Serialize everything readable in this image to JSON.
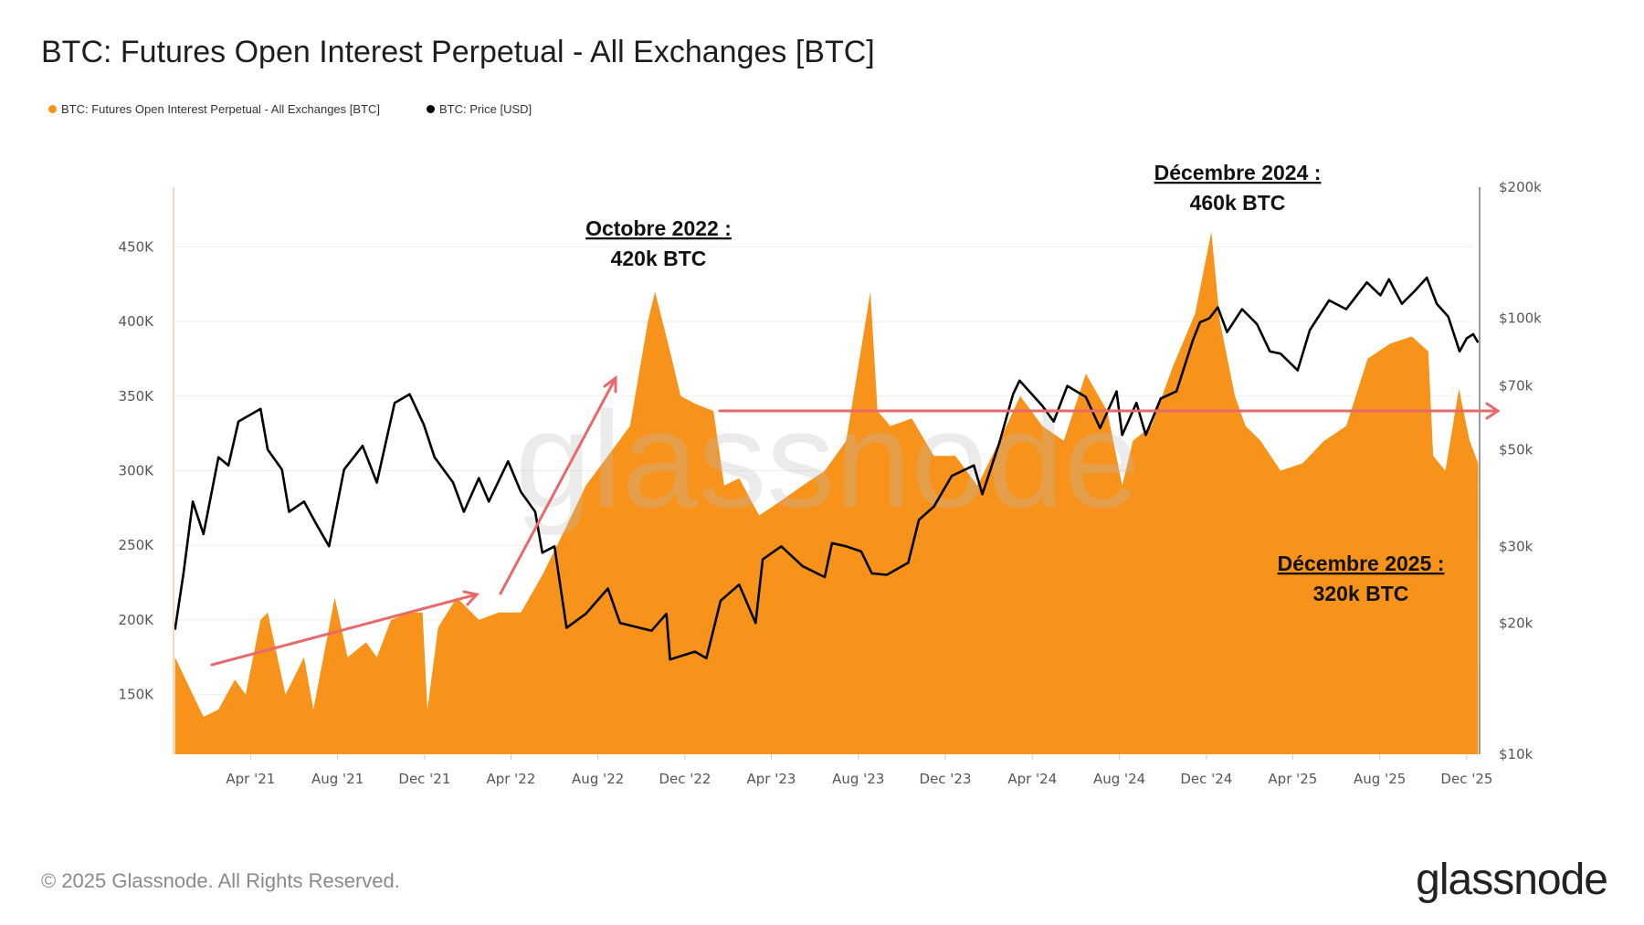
{
  "title": "BTC: Futures Open Interest Perpetual - All Exchanges [BTC]",
  "legend": [
    {
      "label": "BTC: Futures Open Interest Perpetual - All Exchanges [BTC]",
      "color": "#f7931a"
    },
    {
      "label": "BTC: Price [USD]",
      "color": "#000000"
    }
  ],
  "footer": {
    "copyright": "© 2025 Glassnode. All Rights Reserved.",
    "logo": "glassnode"
  },
  "watermark": "glassnode",
  "chart_data": {
    "type": "area+line",
    "title": "BTC: Futures Open Interest Perpetual - All Exchanges [BTC]",
    "xlim": [
      "2020-12-14",
      "2025-12-19"
    ],
    "x_ticks": [
      "Apr '21",
      "Aug '21",
      "Dec '21",
      "Apr '22",
      "Aug '22",
      "Dec '22",
      "Apr '23",
      "Aug '23",
      "Dec '23",
      "Apr '24",
      "Aug '24",
      "Dec '24",
      "Apr '25",
      "Aug '25",
      "Dec '25"
    ],
    "x_tick_dates": [
      "2021-04-01",
      "2021-08-01",
      "2021-12-01",
      "2022-04-01",
      "2022-08-01",
      "2022-12-01",
      "2023-04-01",
      "2023-08-01",
      "2023-12-01",
      "2024-04-01",
      "2024-08-01",
      "2024-12-01",
      "2025-04-01",
      "2025-08-01",
      "2025-12-01"
    ],
    "y_left": {
      "ticks": [
        "150K",
        "200K",
        "250K",
        "300K",
        "350K",
        "400K",
        "450K"
      ],
      "tick_values": [
        150000,
        200000,
        250000,
        300000,
        350000,
        400000,
        450000
      ],
      "ylim": [
        110000,
        490000
      ]
    },
    "y_right": {
      "scale": "log",
      "ticks": [
        "$10k",
        "$20k",
        "$30k",
        "$50k",
        "$70k",
        "$100k",
        "$200k"
      ],
      "tick_values": [
        10000,
        20000,
        30000,
        50000,
        70000,
        100000,
        200000
      ],
      "ylim": [
        10000,
        200000
      ]
    },
    "grid": true,
    "legend_placement": "top-left",
    "series": [
      {
        "name": "BTC: Futures Open Interest Perpetual - All Exchanges [BTC]",
        "axis": "left",
        "color": "#f7931a",
        "style": "area",
        "points": [
          [
            "2020-12-16",
            175000
          ],
          [
            "2021-01-10",
            150000
          ],
          [
            "2021-01-25",
            135000
          ],
          [
            "2021-02-15",
            140000
          ],
          [
            "2021-03-10",
            160000
          ],
          [
            "2021-03-25",
            150000
          ],
          [
            "2021-04-15",
            200000
          ],
          [
            "2021-04-25",
            205000
          ],
          [
            "2021-05-20",
            150000
          ],
          [
            "2021-06-15",
            175000
          ],
          [
            "2021-06-28",
            140000
          ],
          [
            "2021-07-20",
            195000
          ],
          [
            "2021-07-28",
            215000
          ],
          [
            "2021-08-15",
            175000
          ],
          [
            "2021-09-10",
            185000
          ],
          [
            "2021-09-25",
            175000
          ],
          [
            "2021-10-15",
            200000
          ],
          [
            "2021-11-10",
            205000
          ],
          [
            "2021-11-28",
            205000
          ],
          [
            "2021-12-05",
            140000
          ],
          [
            "2021-12-20",
            195000
          ],
          [
            "2022-01-15",
            215000
          ],
          [
            "2022-02-15",
            200000
          ],
          [
            "2022-03-15",
            205000
          ],
          [
            "2022-04-15",
            205000
          ],
          [
            "2022-05-15",
            230000
          ],
          [
            "2022-06-15",
            260000
          ],
          [
            "2022-07-15",
            290000
          ],
          [
            "2022-08-15",
            310000
          ],
          [
            "2022-09-15",
            330000
          ],
          [
            "2022-10-10",
            400000
          ],
          [
            "2022-10-20",
            420000
          ],
          [
            "2022-11-10",
            380000
          ],
          [
            "2022-11-25",
            350000
          ],
          [
            "2022-12-15",
            345000
          ],
          [
            "2023-01-10",
            340000
          ],
          [
            "2023-01-25",
            290000
          ],
          [
            "2023-02-15",
            295000
          ],
          [
            "2023-03-15",
            270000
          ],
          [
            "2023-04-15",
            280000
          ],
          [
            "2023-05-15",
            290000
          ],
          [
            "2023-06-15",
            300000
          ],
          [
            "2023-07-15",
            320000
          ],
          [
            "2023-08-18",
            420000
          ],
          [
            "2023-08-28",
            340000
          ],
          [
            "2023-09-15",
            330000
          ],
          [
            "2023-10-15",
            335000
          ],
          [
            "2023-11-15",
            310000
          ],
          [
            "2023-12-15",
            310000
          ],
          [
            "2024-01-15",
            290000
          ],
          [
            "2024-02-15",
            320000
          ],
          [
            "2024-03-15",
            350000
          ],
          [
            "2024-04-15",
            330000
          ],
          [
            "2024-05-15",
            320000
          ],
          [
            "2024-06-15",
            365000
          ],
          [
            "2024-07-15",
            340000
          ],
          [
            "2024-08-05",
            290000
          ],
          [
            "2024-08-20",
            320000
          ],
          [
            "2024-09-15",
            330000
          ],
          [
            "2024-10-15",
            370000
          ],
          [
            "2024-11-15",
            405000
          ],
          [
            "2024-12-08",
            460000
          ],
          [
            "2024-12-20",
            400000
          ],
          [
            "2025-01-10",
            350000
          ],
          [
            "2025-01-25",
            330000
          ],
          [
            "2025-02-15",
            320000
          ],
          [
            "2025-03-15",
            300000
          ],
          [
            "2025-04-15",
            305000
          ],
          [
            "2025-05-15",
            320000
          ],
          [
            "2025-06-15",
            330000
          ],
          [
            "2025-07-15",
            375000
          ],
          [
            "2025-08-15",
            385000
          ],
          [
            "2025-09-15",
            390000
          ],
          [
            "2025-10-08",
            380000
          ],
          [
            "2025-10-15",
            310000
          ],
          [
            "2025-11-01",
            300000
          ],
          [
            "2025-11-20",
            355000
          ],
          [
            "2025-12-05",
            320000
          ],
          [
            "2025-12-17",
            305000
          ]
        ]
      },
      {
        "name": "BTC: Price [USD]",
        "axis": "right",
        "color": "#000000",
        "style": "line",
        "points": [
          [
            "2020-12-16",
            19300
          ],
          [
            "2020-12-28",
            26000
          ],
          [
            "2021-01-10",
            38000
          ],
          [
            "2021-01-25",
            32000
          ],
          [
            "2021-02-15",
            48000
          ],
          [
            "2021-03-01",
            46000
          ],
          [
            "2021-03-15",
            58000
          ],
          [
            "2021-04-15",
            62000
          ],
          [
            "2021-04-25",
            50000
          ],
          [
            "2021-05-15",
            45000
          ],
          [
            "2021-05-25",
            36000
          ],
          [
            "2021-06-15",
            38000
          ],
          [
            "2021-07-01",
            34000
          ],
          [
            "2021-07-20",
            30000
          ],
          [
            "2021-08-10",
            45000
          ],
          [
            "2021-09-05",
            51000
          ],
          [
            "2021-09-25",
            42000
          ],
          [
            "2021-10-20",
            64000
          ],
          [
            "2021-11-10",
            67000
          ],
          [
            "2021-11-30",
            57000
          ],
          [
            "2021-12-15",
            48000
          ],
          [
            "2022-01-10",
            42000
          ],
          [
            "2022-01-25",
            36000
          ],
          [
            "2022-02-15",
            43000
          ],
          [
            "2022-03-01",
            38000
          ],
          [
            "2022-03-28",
            47000
          ],
          [
            "2022-04-15",
            40000
          ],
          [
            "2022-05-05",
            36000
          ],
          [
            "2022-05-15",
            29000
          ],
          [
            "2022-06-01",
            30000
          ],
          [
            "2022-06-18",
            19500
          ],
          [
            "2022-07-15",
            21000
          ],
          [
            "2022-08-15",
            24000
          ],
          [
            "2022-09-01",
            20000
          ],
          [
            "2022-10-15",
            19200
          ],
          [
            "2022-11-05",
            21000
          ],
          [
            "2022-11-10",
            16500
          ],
          [
            "2022-12-15",
            17200
          ],
          [
            "2022-12-31",
            16600
          ],
          [
            "2023-01-20",
            22500
          ],
          [
            "2023-02-15",
            24500
          ],
          [
            "2023-03-10",
            20000
          ],
          [
            "2023-03-20",
            28000
          ],
          [
            "2023-04-15",
            30000
          ],
          [
            "2023-05-15",
            27000
          ],
          [
            "2023-06-15",
            25500
          ],
          [
            "2023-06-25",
            30500
          ],
          [
            "2023-07-15",
            30000
          ],
          [
            "2023-08-05",
            29200
          ],
          [
            "2023-08-20",
            26000
          ],
          [
            "2023-09-10",
            25800
          ],
          [
            "2023-10-10",
            27500
          ],
          [
            "2023-10-25",
            34500
          ],
          [
            "2023-11-15",
            37000
          ],
          [
            "2023-12-10",
            43500
          ],
          [
            "2024-01-10",
            46000
          ],
          [
            "2024-01-22",
            39500
          ],
          [
            "2024-02-15",
            52000
          ],
          [
            "2024-03-05",
            67000
          ],
          [
            "2024-03-14",
            72000
          ],
          [
            "2024-04-15",
            63000
          ],
          [
            "2024-05-01",
            58000
          ],
          [
            "2024-05-20",
            70000
          ],
          [
            "2024-06-15",
            66000
          ],
          [
            "2024-07-05",
            56000
          ],
          [
            "2024-07-28",
            68000
          ],
          [
            "2024-08-05",
            54000
          ],
          [
            "2024-08-25",
            64000
          ],
          [
            "2024-09-07",
            54000
          ],
          [
            "2024-09-28",
            65500
          ],
          [
            "2024-10-20",
            68000
          ],
          [
            "2024-11-12",
            89000
          ],
          [
            "2024-11-22",
            98000
          ],
          [
            "2024-12-05",
            100000
          ],
          [
            "2024-12-17",
            106000
          ],
          [
            "2024-12-30",
            93000
          ],
          [
            "2025-01-20",
            105000
          ],
          [
            "2025-02-10",
            97000
          ],
          [
            "2025-02-28",
            84000
          ],
          [
            "2025-03-15",
            83000
          ],
          [
            "2025-04-08",
            76000
          ],
          [
            "2025-04-25",
            94000
          ],
          [
            "2025-05-22",
            110000
          ],
          [
            "2025-06-15",
            105000
          ],
          [
            "2025-07-14",
            121000
          ],
          [
            "2025-08-02",
            113000
          ],
          [
            "2025-08-14",
            123000
          ],
          [
            "2025-09-01",
            108000
          ],
          [
            "2025-09-20",
            116000
          ],
          [
            "2025-10-06",
            124000
          ],
          [
            "2025-10-20",
            108000
          ],
          [
            "2025-11-05",
            101000
          ],
          [
            "2025-11-21",
            84000
          ],
          [
            "2025-12-01",
            90000
          ],
          [
            "2025-12-10",
            92000
          ],
          [
            "2025-12-17",
            88000
          ]
        ]
      }
    ],
    "annotations": [
      {
        "title": "Octobre 2022 :",
        "value": "420k BTC"
      },
      {
        "title": "Décembre 2024 :",
        "value": "460k BTC"
      },
      {
        "title": "Décembre 2025 :",
        "value": "320k BTC"
      }
    ],
    "annotation_color": "#e8696b"
  }
}
